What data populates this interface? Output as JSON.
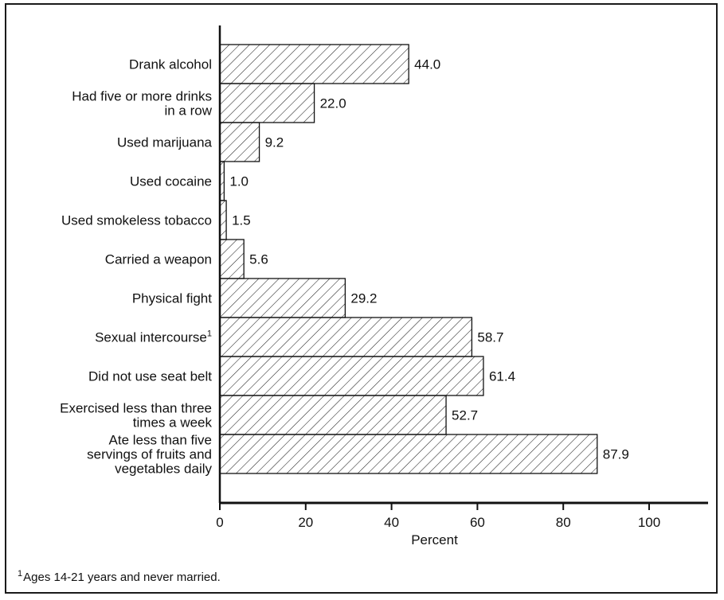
{
  "chart_data": {
    "type": "bar",
    "orientation": "horizontal",
    "categories": [
      [
        "Drank alcohol"
      ],
      [
        "Had five or more drinks",
        "in a row"
      ],
      [
        "Used marijuana"
      ],
      [
        "Used cocaine"
      ],
      [
        "Used smokeless tobacco"
      ],
      [
        "Carried a weapon"
      ],
      [
        "Physical fight"
      ],
      [
        "Sexual intercourse"
      ],
      [
        "Did not use seat belt"
      ],
      [
        "Exercised less than three",
        "times a week"
      ],
      [
        "Ate less than five",
        "servings of fruits and",
        "vegetables daily"
      ]
    ],
    "category_footnote_marks": [
      "",
      "",
      "",
      "",
      "",
      "",
      "",
      "1",
      "",
      "",
      ""
    ],
    "values": [
      44.0,
      22.0,
      9.2,
      1.0,
      1.5,
      5.6,
      29.2,
      58.7,
      61.4,
      52.7,
      87.9
    ],
    "value_labels": [
      "44.0",
      "22.0",
      "9.2",
      "1.0",
      "1.5",
      "5.6",
      "29.2",
      "58.7",
      "61.4",
      "52.7",
      "87.9"
    ],
    "xlabel": "Percent",
    "xticks": [
      "0",
      "20",
      "40",
      "60",
      "80",
      "100"
    ],
    "xlim": [
      0,
      113
    ],
    "bar_fill": "diagonal hatch",
    "grid": false
  },
  "footnote": {
    "mark": "1",
    "text": "Ages 14-21 years and never married."
  }
}
